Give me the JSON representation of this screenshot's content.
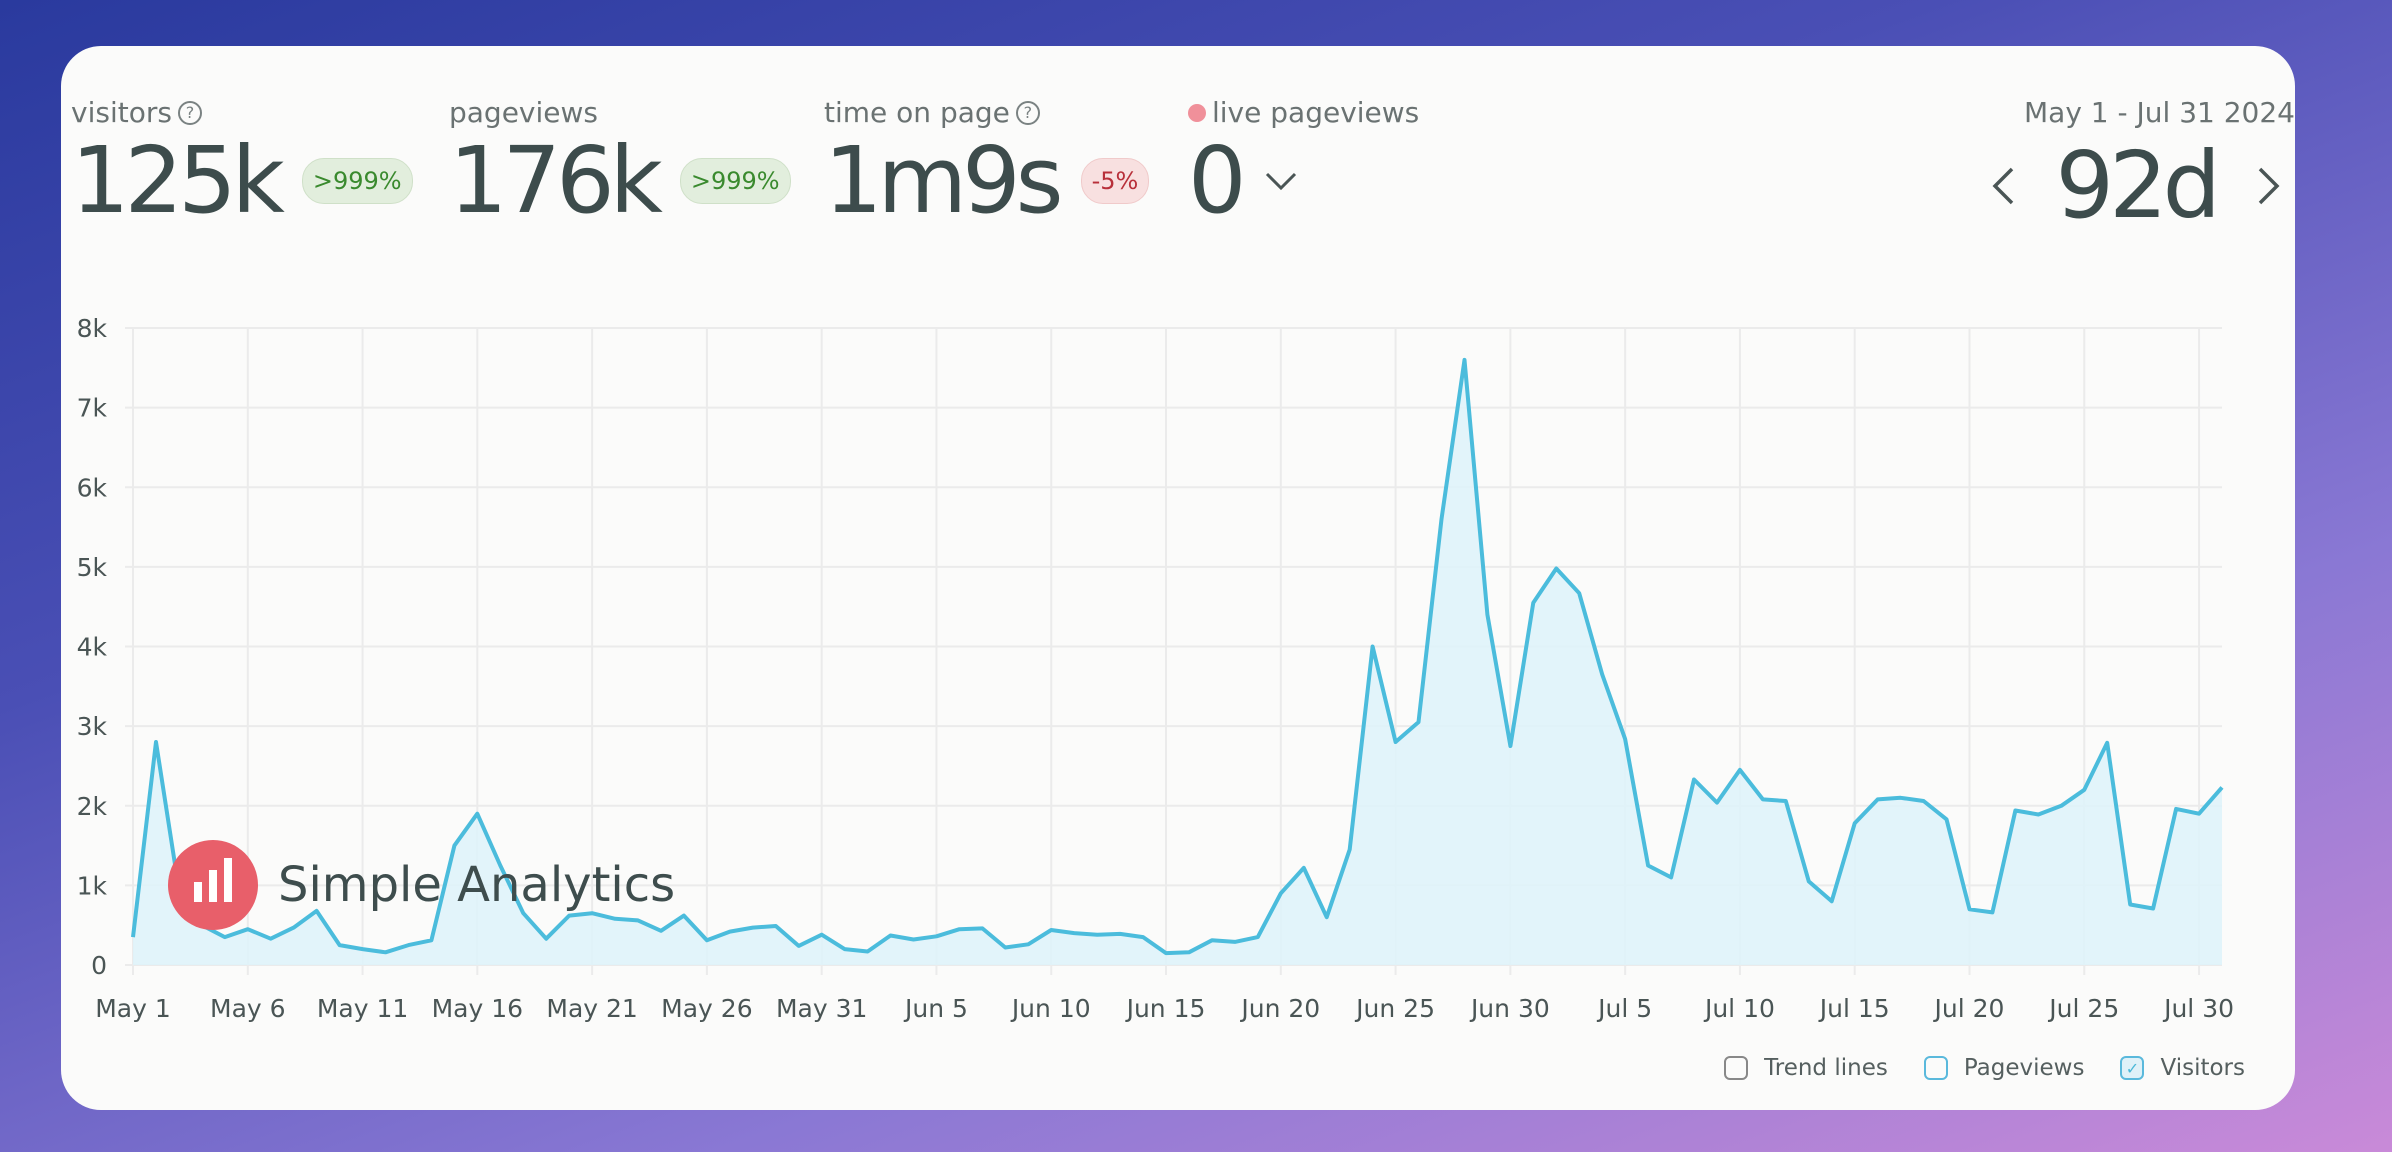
{
  "metrics": {
    "visitors": {
      "label": "visitors",
      "value": "125k",
      "change": ">999%",
      "help_icon": "?"
    },
    "pageviews": {
      "label": "pageviews",
      "value": "176k",
      "change": ">999%"
    },
    "time_on_page": {
      "label": "time on page",
      "value": "1m9s",
      "change": "-5%",
      "help_icon": "?"
    },
    "live": {
      "label": "live pageviews",
      "value": "0"
    }
  },
  "period": {
    "date_range": "May 1 - Jul 31 2024",
    "value": "92d",
    "prev": "‹",
    "next": "›"
  },
  "watermark": {
    "text": "Simple Analytics"
  },
  "legend": {
    "trend": "Trend lines",
    "pageviews": "Pageviews",
    "visitors": "Visitors",
    "check": "✓"
  },
  "colors": {
    "line": "#4bbcdc",
    "fill": "#dff3fa",
    "grid": "#ebebeb",
    "logo": "#e85f6a"
  },
  "chart_data": {
    "type": "area",
    "series": [
      {
        "name": "Visitors",
        "values": [
          350,
          2800,
          950,
          500,
          350,
          450,
          330,
          470,
          680,
          250,
          200,
          160,
          250,
          310,
          1500,
          1900,
          1250,
          650,
          330,
          620,
          650,
          580,
          560,
          430,
          620,
          310,
          420,
          470,
          490,
          240,
          380,
          200,
          170,
          370,
          320,
          360,
          450,
          460,
          220,
          260,
          440,
          400,
          380,
          390,
          350,
          150,
          160,
          310,
          290,
          350,
          900,
          1220,
          600,
          1450,
          4000,
          2800,
          3050,
          5600,
          7600,
          4400,
          2750,
          4550,
          4980,
          4670,
          3650,
          2840,
          1250,
          1100,
          2330,
          2040,
          2450,
          2080,
          2060,
          1050,
          800,
          1780,
          2080,
          2100,
          2060,
          1830,
          700,
          660,
          1940,
          1890,
          2000,
          2200,
          2790,
          760,
          710,
          1960,
          1900,
          2230
        ]
      }
    ],
    "x_start": "May 1",
    "days": 92,
    "x_ticks": [
      "May 1",
      "May 6",
      "May 11",
      "May 16",
      "May 21",
      "May 26",
      "May 31",
      "Jun 5",
      "Jun 10",
      "Jun 15",
      "Jun 20",
      "Jun 25",
      "Jun 30",
      "Jul 5",
      "Jul 10",
      "Jul 15",
      "Jul 20",
      "Jul 25",
      "Jul 30"
    ],
    "y_ticks": [
      "0",
      "1k",
      "2k",
      "3k",
      "4k",
      "5k",
      "6k",
      "7k",
      "8k"
    ],
    "ylim": [
      0,
      8000
    ],
    "grid": true,
    "legend": "bottom-right"
  }
}
